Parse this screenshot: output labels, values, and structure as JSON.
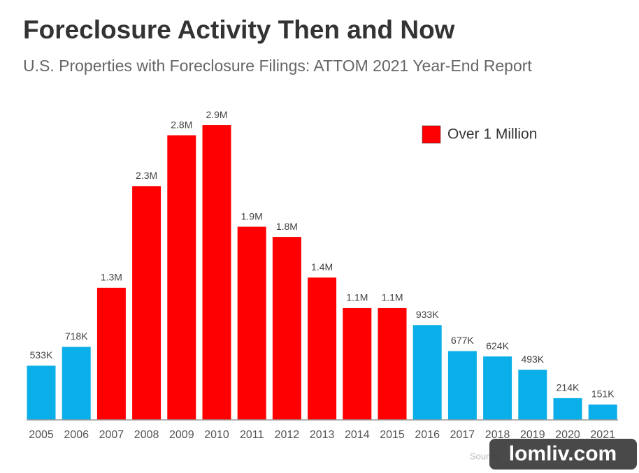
{
  "chart_data": {
    "type": "bar",
    "title": "Foreclosure Activity Then and Now",
    "subtitle": "U.S. Properties with Foreclosure Filings: ATTOM 2021 Year-End Report",
    "categories": [
      "2005",
      "2006",
      "2007",
      "2008",
      "2009",
      "2010",
      "2011",
      "2012",
      "2013",
      "2014",
      "2015",
      "2016",
      "2017",
      "2018",
      "2019",
      "2020",
      "2021"
    ],
    "values": [
      533000,
      718000,
      1300000,
      2300000,
      2800000,
      2900000,
      1900000,
      1800000,
      1400000,
      1100000,
      1100000,
      933000,
      677000,
      624000,
      493000,
      214000,
      151000
    ],
    "value_labels": [
      "533K",
      "718K",
      "1.3M",
      "2.3M",
      "2.8M",
      "2.9M",
      "1.9M",
      "1.8M",
      "1.4M",
      "1.1M",
      "1.1M",
      "933K",
      "677K",
      "624K",
      "493K",
      "214K",
      "151K"
    ],
    "colors": [
      "#0aaee8",
      "#0aaee8",
      "#ff0000",
      "#ff0000",
      "#ff0000",
      "#ff0000",
      "#ff0000",
      "#ff0000",
      "#ff0000",
      "#ff0000",
      "#ff0000",
      "#0aaee8",
      "#0aaee8",
      "#0aaee8",
      "#0aaee8",
      "#0aaee8",
      "#0aaee8"
    ],
    "ylim": [
      0,
      3000000
    ],
    "legend": {
      "label": "Over 1 Million",
      "color": "#ff0000"
    },
    "legend_position": "upper right",
    "source_note": "Source",
    "watermark": "lomliv.com"
  }
}
